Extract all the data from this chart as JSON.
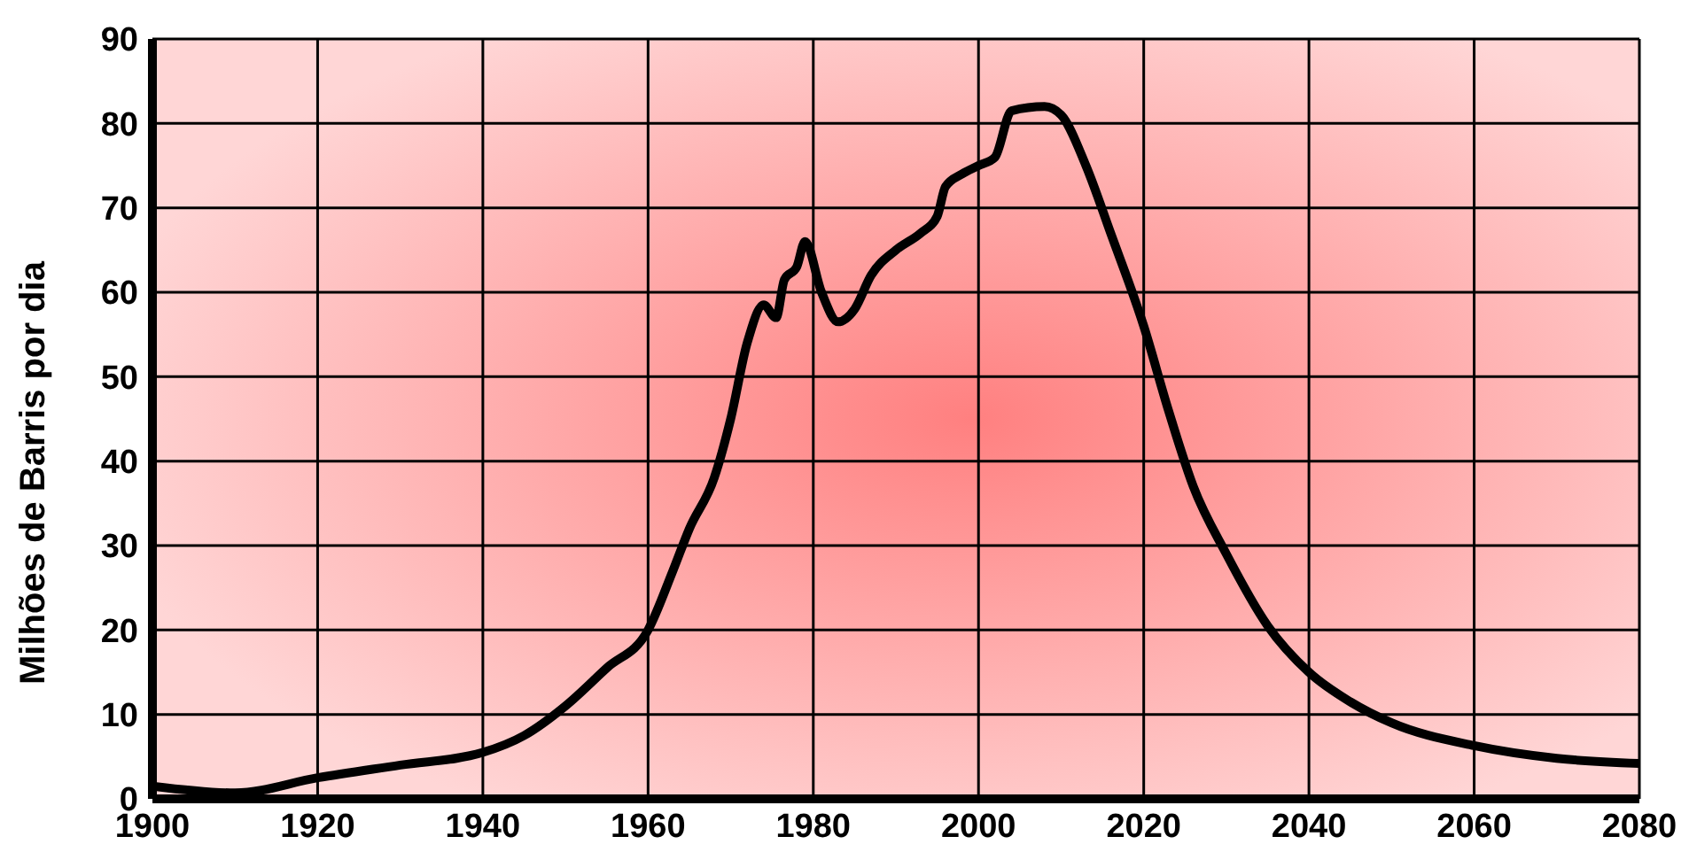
{
  "chart_data": {
    "type": "line",
    "ylabel": "Milhões de Barris por dia",
    "x": [
      1900,
      1910,
      1920,
      1930,
      1940,
      1945,
      1950,
      1955,
      1960,
      1963,
      1965,
      1968,
      1970,
      1972,
      1974,
      1975.5,
      1976.5,
      1978,
      1979,
      1981,
      1983,
      1985,
      1987,
      1990,
      1993,
      1995,
      1996,
      1998,
      2000,
      2002,
      2004,
      2008,
      2010,
      2013,
      2016,
      2020,
      2023,
      2026,
      2030,
      2035,
      2040,
      2045,
      2050,
      2060,
      2070,
      2080
    ],
    "series": [
      {
        "color": "#000000",
        "values": [
          1.5,
          0.7,
          2.5,
          4,
          5.5,
          7.5,
          11,
          15.5,
          20,
          27,
          32,
          38,
          45,
          54,
          58.5,
          57,
          61.5,
          63,
          66,
          60,
          56.5,
          58,
          62,
          65,
          67,
          69,
          72.5,
          74,
          75,
          76,
          81.5,
          82,
          81,
          75,
          67,
          56,
          46,
          37,
          29,
          20.5,
          15,
          11.5,
          9,
          6.3,
          4.8,
          4.2
        ]
      }
    ],
    "xlim": [
      1900,
      2080
    ],
    "xticks": [
      1900,
      1920,
      1940,
      1960,
      1980,
      2000,
      2020,
      2040,
      2060,
      2080
    ],
    "ylim": [
      0,
      90
    ],
    "yticks": [
      0,
      10,
      20,
      30,
      40,
      50,
      60,
      70,
      80,
      90
    ],
    "grid": true,
    "marker": "none",
    "line_style": "solid"
  }
}
